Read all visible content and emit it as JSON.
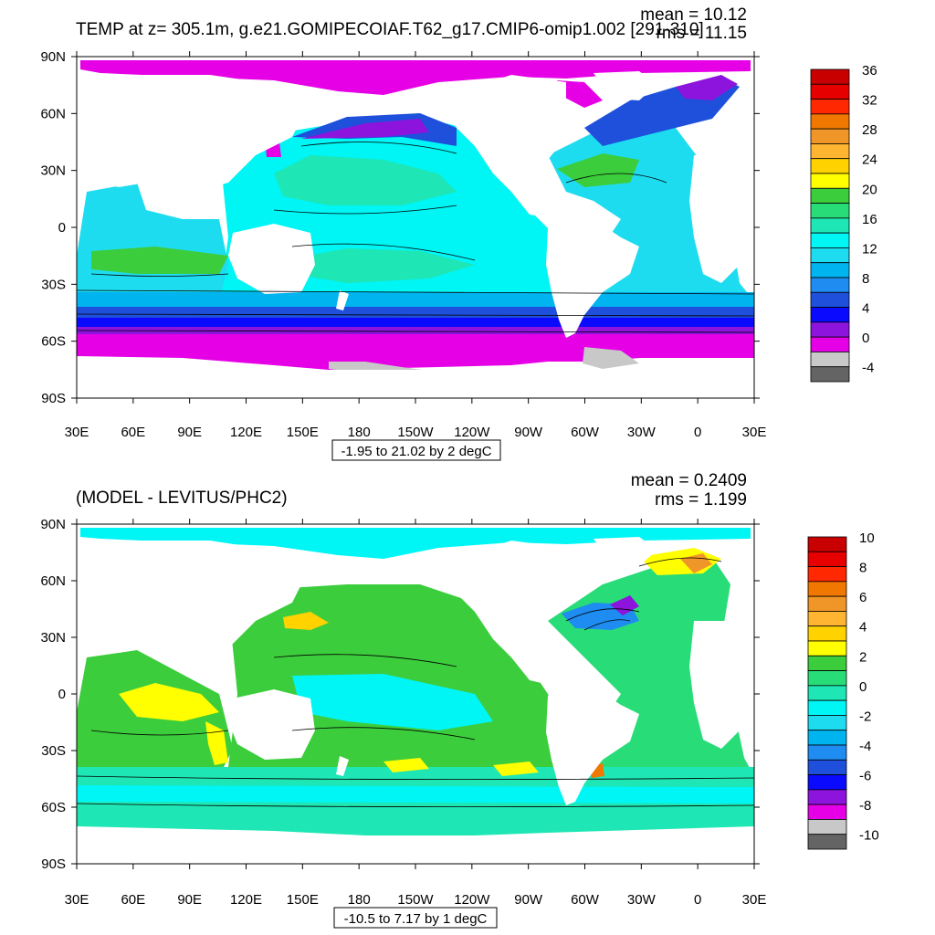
{
  "panels": [
    {
      "title": "TEMP at z= 305.1m, g.e21.GOMIPECOIAF.T62_g17.CMIP6-omip1.002 [291-310]",
      "stats": {
        "mean": "mean = 10.12",
        "rms": "rms = 11.15"
      },
      "caption": "-1.95 to 21.02 by 2 degC"
    },
    {
      "title": "(MODEL - LEVITUS/PHC2)",
      "stats": {
        "mean": "mean = 0.2409",
        "rms": "rms = 1.199"
      },
      "caption": "-10.5 to 7.17 by 1 degC"
    }
  ],
  "chart_data": [
    {
      "type": "heatmap",
      "subtype": "global ocean contour map",
      "title": "TEMP at z= 305.1m, g.e21.GOMIPECOIAF.T62_g17.CMIP6-omip1.002 [291-310]",
      "mean": 10.12,
      "rms": 11.15,
      "units": "degC",
      "contour_range": "-1.95 to 21.02 by 2 degC",
      "x_ticks": [
        "30E",
        "60E",
        "90E",
        "120E",
        "150E",
        "180",
        "150W",
        "120W",
        "90W",
        "60W",
        "30W",
        "0",
        "30E"
      ],
      "y_ticks": [
        "90N",
        "60N",
        "30N",
        "0",
        "30S",
        "60S",
        "90S"
      ],
      "colorbar": {
        "labels": [
          "36",
          "32",
          "28",
          "24",
          "20",
          "16",
          "12",
          "8",
          "4",
          "0",
          "-4"
        ],
        "colors": [
          "#c80000",
          "#e60000",
          "#ff2800",
          "#f07800",
          "#f09628",
          "#ffb432",
          "#ffd200",
          "#ffff00",
          "#3ccd3c",
          "#28dc78",
          "#1ee6b4",
          "#00f5f5",
          "#1edcf0",
          "#00b4f0",
          "#1e8cf0",
          "#1e50dc",
          "#0a0aff",
          "#8c14dc",
          "#e600e6",
          "#c8c8c8",
          "#646464"
        ]
      }
    },
    {
      "type": "heatmap",
      "subtype": "global ocean contour map",
      "title": "(MODEL - LEVITUS/PHC2)",
      "mean": 0.2409,
      "rms": 1.199,
      "units": "degC",
      "contour_range": "-10.5 to 7.17 by 1 degC",
      "x_ticks": [
        "30E",
        "60E",
        "90E",
        "120E",
        "150E",
        "180",
        "150W",
        "120W",
        "90W",
        "60W",
        "30W",
        "0",
        "30E"
      ],
      "y_ticks": [
        "90N",
        "60N",
        "30N",
        "0",
        "30S",
        "60S",
        "90S"
      ],
      "colorbar": {
        "labels": [
          "10",
          "8",
          "6",
          "4",
          "2",
          "0",
          "-2",
          "-4",
          "-6",
          "-8",
          "-10"
        ],
        "colors": [
          "#c80000",
          "#e60000",
          "#ff2800",
          "#f07800",
          "#f09628",
          "#ffb432",
          "#ffd200",
          "#ffff00",
          "#3ccd3c",
          "#28dc78",
          "#1ee6b4",
          "#00f5f5",
          "#1edcf0",
          "#00b4f0",
          "#1e8cf0",
          "#1e50dc",
          "#0a0aff",
          "#8c14dc",
          "#e600e6",
          "#c8c8c8",
          "#646464"
        ]
      }
    }
  ]
}
